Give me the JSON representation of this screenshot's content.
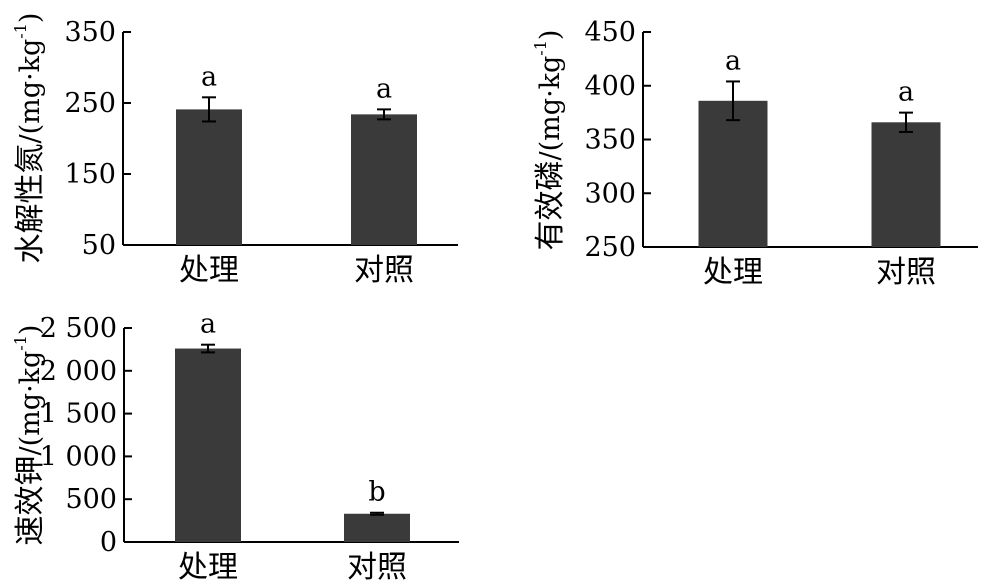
{
  "chart_data": [
    {
      "type": "bar",
      "categories": [
        "处理",
        "对照"
      ],
      "values": [
        241,
        234
      ],
      "errors": [
        17,
        7
      ],
      "significance": [
        "a",
        "a"
      ],
      "ylabel": "水解性氮/(mg·kg⁻¹)",
      "ylabel_main": "水解性氮",
      "ylabel_unit": "/(mg·kg",
      "ylabel_sup": "-1",
      "ylim": [
        50,
        350
      ],
      "yticks": [
        "50",
        "150",
        "250",
        "350"
      ],
      "bar_color": "#3a3a3a"
    },
    {
      "type": "bar",
      "categories": [
        "处理",
        "对照"
      ],
      "values": [
        386,
        366
      ],
      "errors": [
        18,
        9
      ],
      "significance": [
        "a",
        "a"
      ],
      "ylabel": "有效磷/(mg·kg⁻¹)",
      "ylabel_main": "有效磷",
      "ylabel_unit": "/(mg·kg",
      "ylabel_sup": "-1",
      "ylim": [
        250,
        450
      ],
      "yticks": [
        "250",
        "300",
        "350",
        "400",
        "450"
      ],
      "bar_color": "#3a3a3a"
    },
    {
      "type": "bar",
      "categories": [
        "处理",
        "对照"
      ],
      "values": [
        2260,
        330
      ],
      "errors": [
        45,
        12
      ],
      "significance": [
        "a",
        "b"
      ],
      "ylabel": "速效钾/(mg·kg⁻¹)",
      "ylabel_main": "速效钾",
      "ylabel_unit": "/(mg·kg",
      "ylabel_sup": "-1",
      "ylim": [
        0,
        2500
      ],
      "yticks": [
        "0",
        "500",
        "1 000",
        "1 500",
        "2 000",
        "2 500"
      ],
      "bar_color": "#3a3a3a"
    }
  ]
}
